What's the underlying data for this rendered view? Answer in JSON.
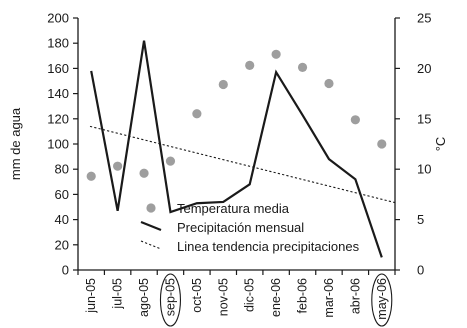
{
  "chart_data": {
    "type": "line",
    "title": "",
    "categories": [
      "jun-05",
      "jul-05",
      "ago-05",
      "sep-05",
      "oct-05",
      "nov-05",
      "dic-05",
      "ene-06",
      "feb-06",
      "mar-06",
      "abr-06",
      "may-06"
    ],
    "circled_categories": [
      "sep-05",
      "may-06"
    ],
    "ylabel_left": "mm de agua",
    "ylabel_right": "°C",
    "ylim_left": [
      0,
      200
    ],
    "ylim_right": [
      0,
      25
    ],
    "yticks_left": [
      "0",
      "20",
      "40",
      "60",
      "80",
      "100",
      "120",
      "140",
      "160",
      "180",
      "200"
    ],
    "yticks_right": [
      "0",
      "5",
      "10",
      "15",
      "20",
      "25"
    ],
    "grid": false,
    "legend_position": "bottom-center",
    "series": [
      {
        "name": "Temperatura media",
        "kind": "scatter",
        "axis": "right",
        "color": "#9e9e9e",
        "values": [
          9.3,
          10.3,
          9.6,
          10.8,
          15.5,
          18.4,
          20.3,
          21.4,
          20.1,
          18.5,
          14.9,
          12.5
        ]
      },
      {
        "name": "Precipitación  mensual",
        "kind": "line",
        "axis": "left",
        "color": "#1a1a1a",
        "values": [
          158,
          47,
          182,
          46,
          53,
          54,
          68,
          157,
          123,
          88,
          72,
          10
        ]
      },
      {
        "name": "Linea tendencia precipitaciones",
        "kind": "trend",
        "axis": "left",
        "color": "#1a1a1a",
        "values": [
          114,
          109,
          104,
          99,
          94,
          89,
          84,
          79,
          74,
          69,
          64,
          59
        ]
      }
    ]
  }
}
